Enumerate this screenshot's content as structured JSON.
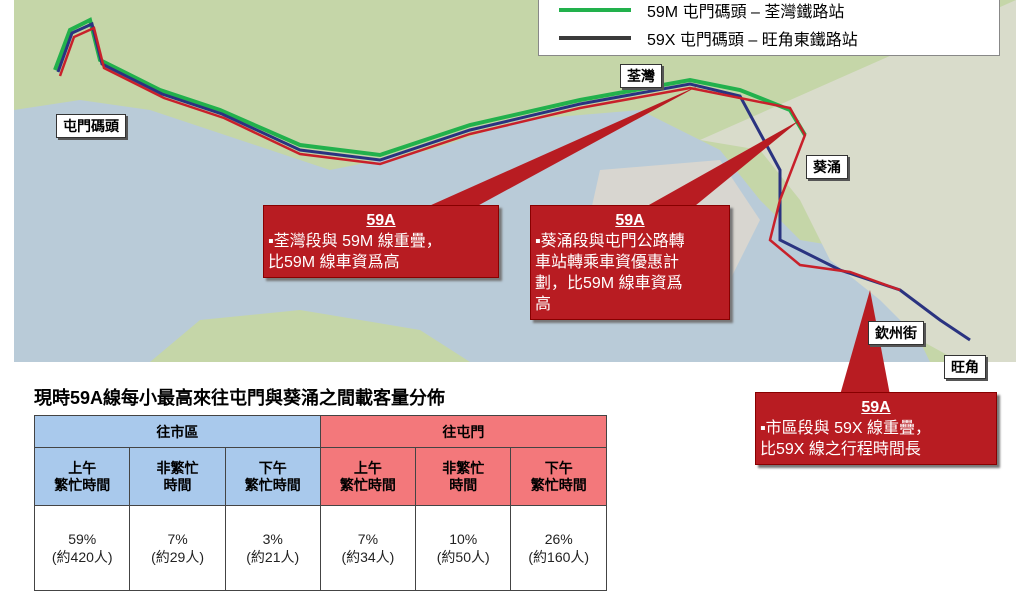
{
  "map": {
    "legend": [
      {
        "label": "59M 屯門碼頭 – 荃灣鐵路站",
        "color": "#22b14c"
      },
      {
        "label": "59X 屯門碼頭 – 旺角東鐵路站",
        "color": "#3a3a3a"
      }
    ],
    "places": [
      "屯門碼頭",
      "荃灣",
      "葵涌",
      "欽州街",
      "旺角"
    ],
    "callouts": [
      {
        "title": "59A",
        "lines": [
          "▪荃灣段與 59M 線重疊，",
          "比59M 線車資爲高"
        ]
      },
      {
        "title": "59A",
        "lines": [
          "▪葵涌段與屯門公路轉",
          "車站轉乘車資優惠計",
          "劃，比59M 線車資爲",
          "高"
        ]
      },
      {
        "title": "59A",
        "lines": [
          "▪市區段與 59X 線重疊，",
          "比59X 線之行程時間長"
        ]
      }
    ]
  },
  "table": {
    "title": "現時59A線每小最高來往屯門與葵涌之間載客量分佈",
    "groups": [
      "往市區",
      "往屯門"
    ],
    "headers": [
      [
        "上午",
        "繁忙時間"
      ],
      [
        "非繁忙",
        "時間"
      ],
      [
        "下午",
        "繁忙時間"
      ],
      [
        "上午",
        "繁忙時間"
      ],
      [
        "非繁忙",
        "時間"
      ],
      [
        "下午",
        "繁忙時間"
      ]
    ],
    "rows": [
      [
        [
          "59%",
          "(約420人)"
        ],
        [
          "7%",
          "(約29人)"
        ],
        [
          "3%",
          "(約21人)"
        ],
        [
          "7%",
          "(約34人)"
        ],
        [
          "10%",
          "(約50人)"
        ],
        [
          "26%",
          "(約160人)"
        ]
      ]
    ]
  }
}
